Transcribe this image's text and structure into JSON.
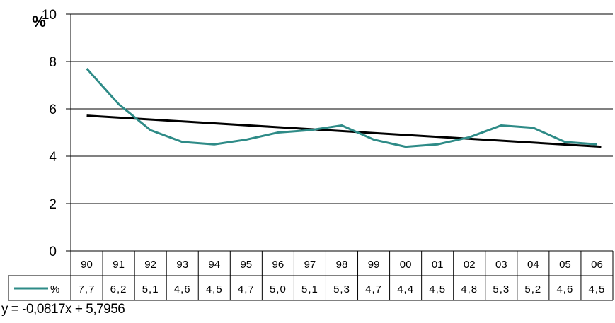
{
  "chart_data": {
    "type": "line",
    "ylabel": "%",
    "ylim": [
      0,
      10
    ],
    "yticks": [
      0,
      2,
      4,
      6,
      8,
      10
    ],
    "categories": [
      "90",
      "91",
      "92",
      "93",
      "94",
      "95",
      "96",
      "97",
      "98",
      "99",
      "00",
      "01",
      "02",
      "03",
      "04",
      "05",
      "06"
    ],
    "series": [
      {
        "name": "%",
        "color": "#2E8B87",
        "values": [
          7.7,
          6.2,
          5.1,
          4.6,
          4.5,
          4.7,
          5.0,
          5.1,
          5.3,
          4.7,
          4.4,
          4.5,
          4.8,
          5.3,
          5.2,
          4.6,
          4.5
        ],
        "labels": [
          "7,7",
          "6,2",
          "5,1",
          "4,6",
          "4,5",
          "4,7",
          "5,0",
          "5,1",
          "5,3",
          "4,7",
          "4,4",
          "4,5",
          "4,8",
          "5,3",
          "5,2",
          "4,6",
          "4,5"
        ]
      }
    ],
    "trendline": {
      "slope": -0.0817,
      "intercept": 5.7956,
      "color": "#000000",
      "equation": "y = -0,0817x + 5,7956"
    },
    "grid": true,
    "legend": "data-table-left"
  }
}
